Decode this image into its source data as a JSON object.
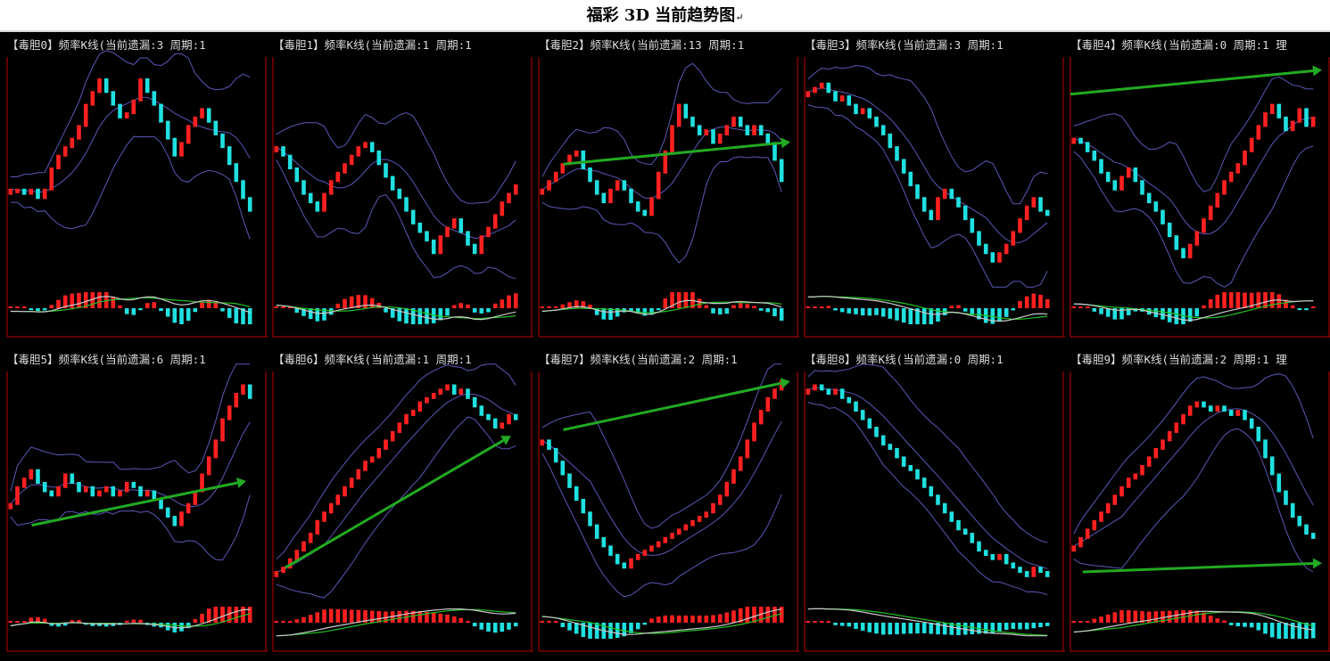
{
  "title": "福彩 3D 当前趋势图",
  "title_mark": "↵",
  "colors": {
    "background": "#000000",
    "up_candle": "#ff2020",
    "down_candle": "#20e0e0",
    "band": "#5a58b8",
    "axis": "#c00000",
    "fast_line": "#c8c8c8",
    "slow_line": "#22c022",
    "trend_arrow": "#22aa22"
  },
  "panels": [
    {
      "label": "【毒胆0】频率K线(当前遗漏:3 周期:1"
    },
    {
      "label": "【毒胆1】频率K线(当前遗漏:1 周期:1"
    },
    {
      "label": "【毒胆2】频率K线(当前遗漏:13 周期:1"
    },
    {
      "label": "【毒胆3】频率K线(当前遗漏:3 周期:1"
    },
    {
      "label": "【毒胆4】频率K线(当前遗漏:0 周期:1 理"
    },
    {
      "label": "【毒胆5】频率K线(当前遗漏:6 周期:1"
    },
    {
      "label": "【毒胆6】频率K线(当前遗漏:1 周期:1"
    },
    {
      "label": "【毒胆7】频率K线(当前遗漏:2 周期:1"
    },
    {
      "label": "【毒胆8】频率K线(当前遗漏:0 周期:1"
    },
    {
      "label": "【毒胆9】频率K线(当前遗漏:2 周期:1 理"
    }
  ],
  "chart_data": [
    {
      "type": "line",
      "panel": 0,
      "series": [
        {
          "values": [
            40,
            40,
            38,
            40,
            36,
            40,
            50,
            56,
            60,
            64,
            70,
            80,
            86,
            92,
            86,
            80,
            74,
            76,
            82,
            92,
            86,
            80,
            72,
            64,
            56,
            62,
            70,
            74,
            78,
            72,
            66,
            60,
            52,
            44,
            36,
            30
          ]
        }
      ],
      "trend": null
    },
    {
      "type": "line",
      "panel": 1,
      "series": [
        {
          "values": [
            60,
            56,
            50,
            44,
            38,
            34,
            30,
            38,
            44,
            48,
            52,
            56,
            60,
            62,
            58,
            52,
            46,
            40,
            36,
            30,
            24,
            20,
            16,
            10,
            18,
            22,
            26,
            20,
            14,
            10,
            18,
            22,
            28,
            34,
            38,
            42
          ]
        }
      ],
      "trend": null
    },
    {
      "type": "line",
      "panel": 2,
      "series": [
        {
          "values": [
            40,
            44,
            48,
            52,
            56,
            58,
            50,
            44,
            38,
            34,
            40,
            44,
            40,
            34,
            30,
            28,
            36,
            48,
            58,
            70,
            80,
            74,
            70,
            66,
            68,
            62,
            66,
            70,
            74,
            70,
            66,
            70,
            66,
            62,
            54,
            44
          ]
        }
      ],
      "trend": {
        "from": [
          0.1,
          0.52
        ],
        "to": [
          1.0,
          0.62
        ]
      }
    },
    {
      "type": "line",
      "panel": 3,
      "series": [
        {
          "values": [
            86,
            88,
            90,
            86,
            82,
            84,
            80,
            76,
            78,
            74,
            70,
            66,
            60,
            54,
            48,
            42,
            36,
            30,
            26,
            36,
            40,
            36,
            32,
            26,
            20,
            14,
            10,
            6,
            10,
            14,
            20,
            26,
            32,
            36,
            30,
            28
          ]
        }
      ],
      "trend": null
    },
    {
      "type": "line",
      "panel": 4,
      "series": [
        {
          "values": [
            64,
            62,
            58,
            54,
            48,
            44,
            40,
            46,
            50,
            44,
            38,
            34,
            30,
            24,
            18,
            12,
            8,
            14,
            20,
            26,
            32,
            38,
            44,
            48,
            52,
            58,
            64,
            70,
            76,
            80,
            74,
            68,
            72,
            78,
            70,
            74
          ]
        }
      ],
      "trend": {
        "from": [
          0.0,
          0.85
        ],
        "to": [
          1.0,
          0.96
        ]
      }
    },
    {
      "type": "line",
      "panel": 5,
      "series": [
        {
          "values": [
            40,
            48,
            52,
            56,
            50,
            46,
            44,
            48,
            54,
            50,
            46,
            48,
            44,
            46,
            48,
            44,
            46,
            50,
            48,
            44,
            46,
            42,
            38,
            34,
            30,
            36,
            40,
            46,
            54,
            62,
            70,
            80,
            86,
            92,
            96,
            90
          ]
        }
      ],
      "trend": {
        "from": [
          0.1,
          0.3
        ],
        "to": [
          0.95,
          0.5
        ]
      }
    },
    {
      "type": "line",
      "panel": 6,
      "series": [
        {
          "values": [
            8,
            10,
            14,
            18,
            22,
            26,
            32,
            36,
            40,
            44,
            48,
            52,
            56,
            60,
            62,
            66,
            70,
            74,
            78,
            82,
            84,
            88,
            90,
            92,
            94,
            96,
            92,
            94,
            90,
            86,
            82,
            80,
            76,
            78,
            82,
            80
          ]
        }
      ],
      "trend": {
        "from": [
          0.05,
          0.1
        ],
        "to": [
          0.95,
          0.7
        ]
      }
    },
    {
      "type": "line",
      "panel": 7,
      "series": [
        {
          "values": [
            70,
            66,
            60,
            54,
            48,
            42,
            36,
            30,
            24,
            20,
            16,
            12,
            10,
            14,
            16,
            18,
            20,
            22,
            24,
            26,
            28,
            30,
            32,
            34,
            36,
            40,
            44,
            50,
            56,
            62,
            70,
            78,
            84,
            90,
            94,
            98
          ]
        }
      ],
      "trend": {
        "from": [
          0.1,
          0.75
        ],
        "to": [
          1.0,
          0.97
        ]
      }
    },
    {
      "type": "line",
      "panel": 8,
      "series": [
        {
          "values": [
            94,
            96,
            94,
            92,
            94,
            90,
            88,
            84,
            80,
            76,
            72,
            68,
            66,
            62,
            58,
            56,
            52,
            48,
            44,
            40,
            36,
            32,
            28,
            26,
            22,
            18,
            16,
            14,
            16,
            12,
            10,
            8,
            6,
            10,
            8,
            6
          ]
        }
      ],
      "trend": null
    },
    {
      "type": "line",
      "panel": 9,
      "series": [
        {
          "values": [
            20,
            24,
            28,
            32,
            36,
            40,
            44,
            48,
            52,
            54,
            58,
            62,
            66,
            70,
            74,
            78,
            82,
            86,
            88,
            86,
            84,
            86,
            84,
            82,
            84,
            80,
            76,
            70,
            62,
            54,
            46,
            40,
            34,
            30,
            26,
            24
          ]
        }
      ],
      "trend": {
        "from": [
          0.05,
          0.08
        ],
        "to": [
          1.0,
          0.12
        ]
      }
    }
  ]
}
